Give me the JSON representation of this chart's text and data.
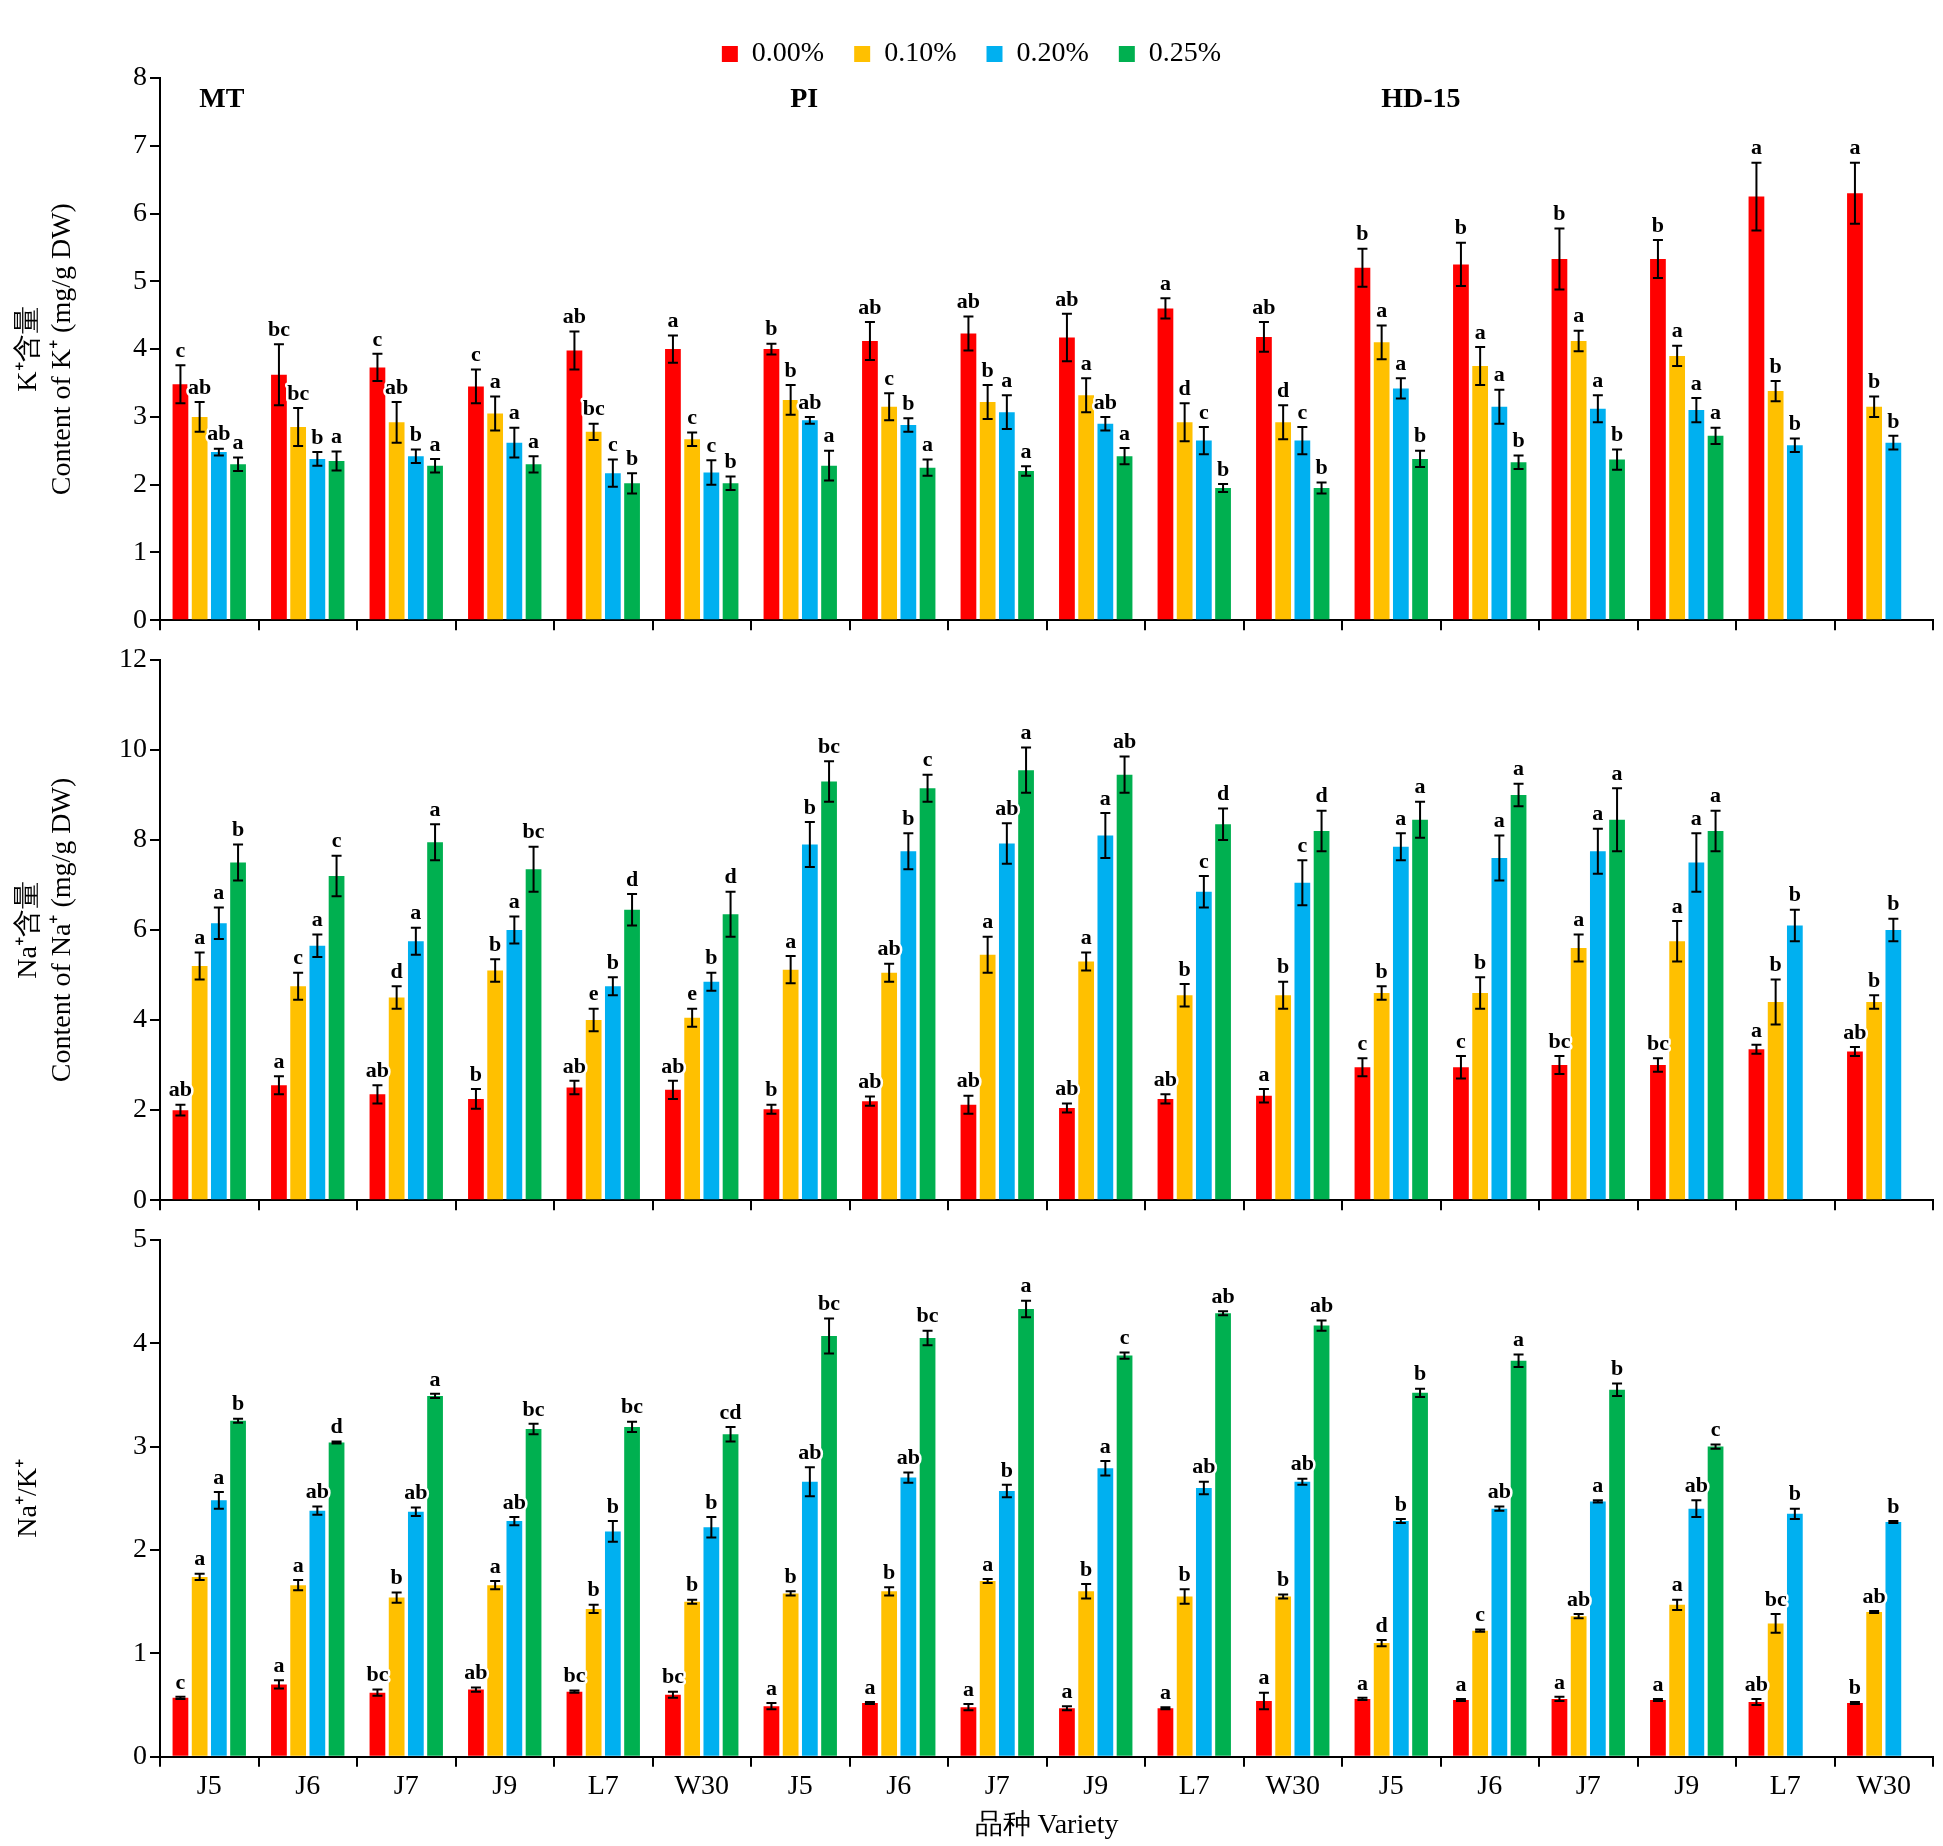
{
  "chart_data": [
    {
      "type": "bar",
      "ylabel": "K⁺含量\nContent of K⁺ (mg/g DW)",
      "categories": [
        null,
        null,
        null,
        null,
        null,
        null,
        null,
        null,
        null,
        null,
        null,
        null,
        null,
        null,
        null,
        null,
        null,
        null
      ],
      "ylim": [
        0,
        8
      ],
      "yticks": [
        0,
        1,
        2,
        3,
        4,
        5,
        6,
        7,
        8
      ],
      "tick_labels": "y",
      "legend": "top",
      "annotations": [
        "MT",
        "PI",
        "HD-15"
      ],
      "series": [
        {
          "name": "0.00%",
          "color": "#ff0000",
          "values": [
            3.48,
            3.62,
            3.73,
            3.45,
            3.98,
            4.0,
            4.0,
            4.12,
            4.23,
            4.17,
            4.6,
            4.18,
            5.2,
            5.25,
            5.33,
            5.33,
            6.25,
            6.3
          ],
          "errors": [
            0.28,
            0.45,
            0.2,
            0.25,
            0.28,
            0.2,
            0.08,
            0.28,
            0.25,
            0.35,
            0.15,
            0.22,
            0.28,
            0.32,
            0.45,
            0.28,
            0.5,
            0.45
          ],
          "value_labels": [
            "c",
            "bc",
            "c",
            "c",
            "ab",
            "a",
            "b",
            "ab",
            "ab",
            "ab",
            "a",
            "ab",
            "b",
            "b",
            "b",
            "b",
            "a",
            "a"
          ]
        },
        {
          "name": "0.10%",
          "color": "#ffc000",
          "values": [
            3.0,
            2.85,
            2.92,
            3.05,
            2.78,
            2.67,
            3.25,
            3.15,
            3.22,
            3.32,
            2.92,
            2.92,
            4.1,
            3.75,
            4.12,
            3.9,
            3.38,
            3.15
          ],
          "errors": [
            0.22,
            0.28,
            0.3,
            0.25,
            0.12,
            0.1,
            0.22,
            0.2,
            0.25,
            0.25,
            0.28,
            0.25,
            0.25,
            0.28,
            0.15,
            0.15,
            0.15,
            0.15
          ],
          "value_labels": [
            "ab",
            "bc",
            "ab",
            "a",
            "bc",
            "c",
            "b",
            "c",
            "b",
            "a",
            "d",
            "d",
            "a",
            "a",
            "a",
            "a",
            "b",
            "b"
          ]
        },
        {
          "name": "0.20%",
          "color": "#00b0f0",
          "values": [
            2.48,
            2.38,
            2.42,
            2.62,
            2.17,
            2.18,
            2.95,
            2.88,
            3.07,
            2.9,
            2.65,
            2.65,
            3.42,
            3.15,
            3.12,
            3.1,
            2.58,
            2.62
          ],
          "errors": [
            0.05,
            0.1,
            0.1,
            0.22,
            0.2,
            0.18,
            0.05,
            0.1,
            0.25,
            0.1,
            0.2,
            0.2,
            0.15,
            0.25,
            0.2,
            0.18,
            0.1,
            0.1
          ],
          "value_labels": [
            "ab",
            "b",
            "b",
            "a",
            "c",
            "c",
            "ab",
            "b",
            "a",
            "ab",
            "c",
            "c",
            "a",
            "a",
            "a",
            "a",
            "b",
            "b"
          ]
        },
        {
          "name": "0.25%",
          "color": "#00b050",
          "values": [
            2.3,
            2.35,
            2.28,
            2.3,
            2.02,
            2.02,
            2.28,
            2.25,
            2.2,
            2.42,
            1.95,
            1.95,
            2.38,
            2.33,
            2.37,
            2.72,
            null,
            null
          ],
          "errors": [
            0.1,
            0.14,
            0.1,
            0.12,
            0.15,
            0.1,
            0.22,
            0.12,
            0.07,
            0.12,
            0.06,
            0.08,
            0.12,
            0.1,
            0.15,
            0.12,
            null,
            null
          ],
          "value_labels": [
            "a",
            "a",
            "a",
            "a",
            "b",
            "b",
            "a",
            "a",
            "a",
            "a",
            "b",
            "b",
            "b",
            "b",
            "b",
            "a",
            null,
            null
          ]
        }
      ]
    },
    {
      "type": "bar",
      "ylabel": "Na⁺含量\nContent of Na⁺ (mg/g DW)",
      "categories": [
        null,
        null,
        null,
        null,
        null,
        null,
        null,
        null,
        null,
        null,
        null,
        null,
        null,
        null,
        null,
        null,
        null,
        null
      ],
      "ylim": [
        0,
        12
      ],
      "yticks": [
        0,
        2,
        4,
        6,
        8,
        10,
        12
      ],
      "tick_labels": "y",
      "series": [
        {
          "color": "#ff0000",
          "values": [
            2.0,
            2.55,
            2.35,
            2.25,
            2.5,
            2.45,
            2.02,
            2.2,
            2.12,
            2.05,
            2.25,
            2.32,
            2.95,
            2.95,
            3.0,
            3.0,
            3.35,
            3.3
          ],
          "errors": [
            0.12,
            0.2,
            0.2,
            0.22,
            0.15,
            0.2,
            0.1,
            0.1,
            0.2,
            0.1,
            0.1,
            0.15,
            0.2,
            0.25,
            0.2,
            0.15,
            0.1,
            0.1
          ],
          "value_labels": [
            "ab",
            "a",
            "ab",
            "b",
            "ab",
            "ab",
            "b",
            "ab",
            "ab",
            "ab",
            "ab",
            "a",
            "c",
            "c",
            "bc",
            "bc",
            "a",
            "ab"
          ]
        },
        {
          "color": "#ffc000",
          "values": [
            5.2,
            4.75,
            4.5,
            5.1,
            4.0,
            4.05,
            5.12,
            5.05,
            5.45,
            5.3,
            4.55,
            4.55,
            4.6,
            4.6,
            5.6,
            5.75,
            4.4,
            4.4
          ],
          "errors": [
            0.3,
            0.3,
            0.25,
            0.25,
            0.25,
            0.2,
            0.3,
            0.2,
            0.4,
            0.2,
            0.25,
            0.3,
            0.15,
            0.35,
            0.3,
            0.45,
            0.5,
            0.15
          ],
          "value_labels": [
            "a",
            "c",
            "d",
            "b",
            "e",
            "e",
            "a",
            "ab",
            "a",
            "a",
            "b",
            "b",
            "b",
            "b",
            "a",
            "a",
            "b",
            "b"
          ]
        },
        {
          "color": "#00b0f0",
          "values": [
            6.15,
            5.65,
            5.75,
            6.0,
            4.75,
            4.85,
            7.9,
            7.75,
            7.92,
            8.1,
            6.85,
            7.05,
            7.85,
            7.6,
            7.75,
            7.5,
            6.1,
            6.0
          ],
          "errors": [
            0.35,
            0.25,
            0.3,
            0.3,
            0.2,
            0.2,
            0.5,
            0.4,
            0.45,
            0.5,
            0.35,
            0.5,
            0.3,
            0.5,
            0.5,
            0.65,
            0.35,
            0.25
          ],
          "value_labels": [
            "a",
            "a",
            "a",
            "a",
            "b",
            "b",
            "b",
            "b",
            "ab",
            "a",
            "c",
            "c",
            "a",
            "a",
            "a",
            "a",
            "b",
            "b"
          ]
        },
        {
          "color": "#00b050",
          "values": [
            7.5,
            7.2,
            7.95,
            7.35,
            6.45,
            6.35,
            9.3,
            9.15,
            9.55,
            9.45,
            8.35,
            8.2,
            8.45,
            9.0,
            8.45,
            8.2,
            null,
            null
          ],
          "errors": [
            0.4,
            0.45,
            0.4,
            0.5,
            0.35,
            0.5,
            0.45,
            0.3,
            0.5,
            0.4,
            0.35,
            0.45,
            0.4,
            0.25,
            0.7,
            0.45,
            null,
            null
          ],
          "value_labels": [
            "b",
            "c",
            "a",
            "bc",
            "d",
            "d",
            "bc",
            "c",
            "a",
            "ab",
            "d",
            "d",
            "a",
            "a",
            "a",
            "a",
            null,
            null
          ]
        }
      ]
    },
    {
      "type": "bar",
      "ylabel": "Na⁺/K⁺",
      "xlabel": "品种 Variety",
      "categories": [
        "J5",
        "J6",
        "J7",
        "J9",
        "L7",
        "W30",
        "J5",
        "J6",
        "J7",
        "J9",
        "L7",
        "W30",
        "J5",
        "J6",
        "J7",
        "J9",
        "L7",
        "W30"
      ],
      "ylim": [
        0,
        5
      ],
      "yticks": [
        0,
        1,
        2,
        3,
        4,
        5
      ],
      "series": [
        {
          "color": "#ff0000",
          "values": [
            0.57,
            0.7,
            0.62,
            0.65,
            0.63,
            0.6,
            0.49,
            0.52,
            0.48,
            0.47,
            0.47,
            0.54,
            0.56,
            0.55,
            0.56,
            0.55,
            0.53,
            0.52
          ],
          "errors": [
            0.01,
            0.04,
            0.03,
            0.02,
            0.01,
            0.03,
            0.03,
            0.01,
            0.03,
            0.02,
            0.01,
            0.08,
            0.01,
            0.01,
            0.02,
            0.01,
            0.03,
            0.01
          ],
          "value_labels": [
            "c",
            "a",
            "bc",
            "ab",
            "bc",
            "bc",
            "a",
            "a",
            "a",
            "a",
            "a",
            "a",
            "a",
            "a",
            "a",
            "a",
            "ab",
            "b"
          ]
        },
        {
          "color": "#ffc000",
          "values": [
            1.74,
            1.66,
            1.54,
            1.66,
            1.43,
            1.5,
            1.58,
            1.6,
            1.7,
            1.6,
            1.55,
            1.55,
            1.1,
            1.22,
            1.36,
            1.47,
            1.29,
            1.4
          ],
          "errors": [
            0.03,
            0.05,
            0.05,
            0.04,
            0.04,
            0.02,
            0.02,
            0.04,
            0.02,
            0.07,
            0.07,
            0.02,
            0.03,
            0.01,
            0.02,
            0.05,
            0.09,
            0.01
          ],
          "value_labels": [
            "a",
            "a",
            "b",
            "a",
            "b",
            "b",
            "b",
            "b",
            "a",
            "b",
            "b",
            "b",
            "d",
            "c",
            "ab",
            "a",
            "bc",
            "ab"
          ]
        },
        {
          "color": "#00b0f0",
          "values": [
            2.48,
            2.38,
            2.37,
            2.28,
            2.18,
            2.22,
            2.66,
            2.7,
            2.57,
            2.79,
            2.6,
            2.66,
            2.28,
            2.4,
            2.47,
            2.4,
            2.35,
            2.27
          ],
          "errors": [
            0.08,
            0.04,
            0.04,
            0.04,
            0.1,
            0.1,
            0.14,
            0.05,
            0.06,
            0.07,
            0.06,
            0.03,
            0.02,
            0.02,
            0.01,
            0.08,
            0.05,
            0.01
          ],
          "value_labels": [
            "a",
            "ab",
            "ab",
            "ab",
            "b",
            "b",
            "ab",
            "ab",
            "b",
            "a",
            "ab",
            "ab",
            "b",
            "ab",
            "a",
            "ab",
            "b",
            "b"
          ]
        },
        {
          "color": "#00b050",
          "values": [
            3.25,
            3.04,
            3.49,
            3.17,
            3.19,
            3.12,
            4.07,
            4.05,
            4.33,
            3.88,
            4.29,
            4.17,
            3.52,
            3.83,
            3.55,
            3.0,
            null,
            null
          ],
          "errors": [
            0.02,
            0.01,
            0.02,
            0.05,
            0.05,
            0.07,
            0.17,
            0.07,
            0.08,
            0.03,
            0.02,
            0.05,
            0.04,
            0.06,
            0.06,
            0.02,
            null,
            null
          ],
          "value_labels": [
            "b",
            "d",
            "a",
            "bc",
            "bc",
            "cd",
            "bc",
            "bc",
            "a",
            "c",
            "ab",
            "ab",
            "b",
            "a",
            "b",
            "c",
            null,
            null
          ]
        }
      ]
    }
  ]
}
